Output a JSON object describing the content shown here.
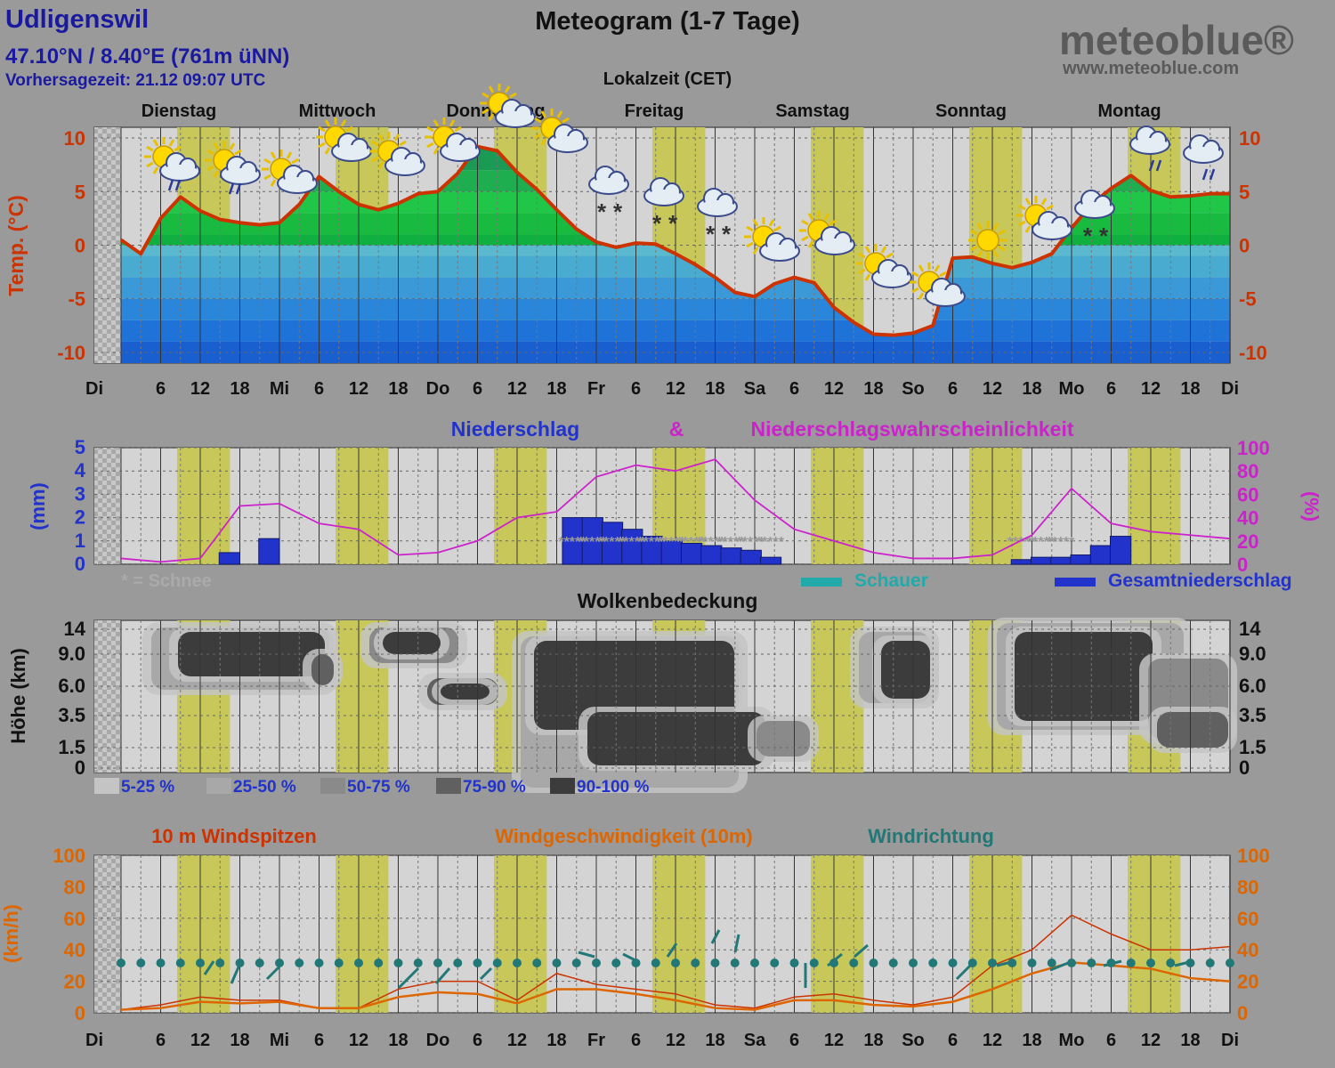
{
  "header": {
    "location": "Udligenswil",
    "coords": "47.10°N / 8.40°E (761m üNN)",
    "forecast_time": "Vorhersagezeit: 21.12 09:07 UTC",
    "title": "Meteogram (1-7 Tage)",
    "timezone_label": "Lokalzeit (CET)",
    "logo": "meteoblue®",
    "logo_url": "www.meteoblue.com"
  },
  "colors": {
    "temperature": "#cc3300",
    "precip": "#2233cc",
    "probability": "#cc22cc",
    "showers": "#22aaaa",
    "wind_gust": "#cc3300",
    "wind_speed": "#dd6600",
    "wind_dir": "#227777",
    "daylight": "#c8c85a",
    "night_hatch": "#b8b8b8"
  },
  "days": [
    "Dienstag",
    "Mittwoch",
    "Donnerstag",
    "Freitag",
    "Samstag",
    "Sonntag",
    "Montag"
  ],
  "time_axis": [
    "Di",
    "6",
    "12",
    "18",
    "Mi",
    "6",
    "12",
    "18",
    "Do",
    "6",
    "12",
    "18",
    "Fr",
    "6",
    "12",
    "18",
    "Sa",
    "6",
    "12",
    "18",
    "So",
    "6",
    "12",
    "18",
    "Mo",
    "6",
    "12",
    "18",
    "Di"
  ],
  "chart_data": [
    {
      "type": "area",
      "name": "temperature",
      "ylabel": "Temp. (°C)",
      "ylim": [
        -11,
        11
      ],
      "yticks": [
        "10",
        "5",
        "0",
        "-5",
        "-10"
      ],
      "ytick_values": [
        10,
        5,
        0,
        -5,
        -10
      ],
      "x_hours": [
        0,
        3,
        6,
        9,
        12,
        15,
        18,
        21,
        24,
        27,
        30,
        33,
        36,
        39,
        42,
        45,
        48,
        51,
        54,
        57,
        60,
        63,
        66,
        69,
        72,
        75,
        78,
        81,
        84,
        87,
        90,
        93,
        96,
        99,
        102,
        105,
        108,
        111,
        114,
        117,
        120,
        123,
        126,
        129,
        132,
        135,
        138,
        141,
        144,
        147,
        150,
        153,
        156,
        159,
        162,
        165,
        168
      ],
      "values": [
        0.5,
        -0.8,
        2.5,
        4.5,
        3.2,
        2.4,
        2.1,
        1.9,
        2.1,
        3.8,
        6.4,
        5.0,
        3.8,
        3.3,
        3.9,
        4.8,
        5.0,
        6.7,
        9.2,
        8.8,
        6.8,
        5.2,
        3.3,
        1.5,
        0.3,
        -0.2,
        0.2,
        0.1,
        -0.8,
        -1.8,
        -3.0,
        -4.4,
        -4.8,
        -3.6,
        -3.0,
        -3.5,
        -5.8,
        -7.2,
        -8.3,
        -8.4,
        -8.2,
        -7.5,
        -1.2,
        -1.1,
        -1.7,
        -2.1,
        -1.6,
        -0.8,
        1.6,
        3.8,
        5.3,
        6.5,
        5.1,
        4.5,
        4.6,
        4.8,
        4.8
      ],
      "weather_icons": [
        "sun-cloud-rain",
        "sun-cloud-rain",
        "sun-cloud",
        "sun-cloud",
        "sun-cloud",
        "sun-cloud",
        "sun-cloud",
        "sun-cloud",
        "cloud-snow",
        "cloud-snow",
        "cloud-snow",
        "sun-cloud",
        "sun-cloud",
        "sun-cloud",
        "sun-cloud",
        "sun",
        "sun-cloud",
        "cloud-snow",
        "cloud-rain",
        "cloud-rain",
        "cloud"
      ]
    },
    {
      "type": "bar",
      "name": "precipitation",
      "title_left": "Niederschlag",
      "title_amp": "&",
      "title_right": "Niederschlagswahrscheinlichkeit",
      "ylabel": "(mm)",
      "ylabel_right": "(%)",
      "ylim": [
        0,
        5
      ],
      "yticks": [
        "5",
        "4",
        "3",
        "2",
        "1",
        "0"
      ],
      "ytick_values": [
        5,
        4,
        3,
        2,
        1,
        0
      ],
      "ylim_right": [
        0,
        100
      ],
      "yticks_right": [
        "100",
        "80",
        "60",
        "40",
        "20",
        "0"
      ],
      "ytick_values_right": [
        100,
        80,
        60,
        40,
        20,
        0
      ],
      "bars_x_hours": [
        15,
        21,
        67,
        70,
        73,
        76,
        79,
        82,
        85,
        88,
        91,
        94,
        97,
        135,
        138,
        141,
        144,
        147,
        150
      ],
      "bars_mm": [
        0.5,
        1.1,
        2.0,
        2.0,
        1.8,
        1.5,
        1.2,
        1.0,
        0.9,
        0.8,
        0.7,
        0.6,
        0.3,
        0.2,
        0.3,
        0.3,
        0.4,
        0.8,
        1.2
      ],
      "snow_x_hours": [
        67,
        70,
        73,
        76,
        79,
        82,
        85,
        88,
        91,
        94,
        97,
        135,
        138,
        141
      ],
      "prob_x_hours": [
        0,
        6,
        12,
        18,
        24,
        30,
        36,
        42,
        48,
        54,
        60,
        66,
        72,
        78,
        84,
        90,
        96,
        102,
        108,
        114,
        120,
        126,
        132,
        138,
        144,
        150,
        156,
        162,
        168
      ],
      "prob_pct": [
        5,
        2,
        5,
        50,
        52,
        35,
        30,
        8,
        10,
        20,
        40,
        45,
        75,
        85,
        80,
        90,
        55,
        30,
        20,
        10,
        5,
        5,
        8,
        25,
        65,
        35,
        28,
        25,
        22
      ],
      "legend_snow": "* = Schnee",
      "legend_showers": "Schauer",
      "legend_total": "Gesamtniederschlag"
    },
    {
      "type": "heatmap",
      "name": "cloud_cover",
      "title": "Wolkenbedeckung",
      "ylabel": "Höhe (km)",
      "yticks": [
        "14",
        "9.0",
        "6.0",
        "3.5",
        "1.5",
        "0"
      ],
      "legend": [
        "5-25 %",
        "25-50 %",
        "50-75 %",
        "75-90 %",
        "90-100 %"
      ],
      "legend_colors": [
        "#c4c4c4",
        "#a8a8a8",
        "#8a8a8a",
        "#606060",
        "#3c3c3c"
      ]
    },
    {
      "type": "line",
      "name": "wind",
      "title_gust": "10 m Windspitzen",
      "title_speed": "Windgeschwindigkeit (10m)",
      "title_dir": "Windrichtung",
      "ylabel": "(km/h)",
      "ylim": [
        0,
        100
      ],
      "yticks": [
        "100",
        "80",
        "60",
        "40",
        "20",
        "0"
      ],
      "ytick_values": [
        100,
        80,
        60,
        40,
        20,
        0
      ],
      "x_hours": [
        0,
        6,
        12,
        18,
        24,
        30,
        36,
        42,
        48,
        54,
        60,
        66,
        72,
        78,
        84,
        90,
        96,
        102,
        108,
        114,
        120,
        126,
        132,
        138,
        144,
        150,
        156,
        162,
        168
      ],
      "gust_kmh": [
        2,
        5,
        10,
        8,
        8,
        3,
        3,
        15,
        20,
        20,
        8,
        25,
        18,
        15,
        12,
        5,
        3,
        10,
        12,
        8,
        5,
        10,
        30,
        40,
        62,
        50,
        40,
        40,
        42
      ],
      "speed_kmh": [
        2,
        3,
        7,
        6,
        7,
        3,
        3,
        10,
        13,
        12,
        6,
        15,
        15,
        12,
        8,
        3,
        2,
        8,
        8,
        5,
        4,
        7,
        15,
        25,
        32,
        30,
        28,
        22,
        20
      ]
    }
  ]
}
